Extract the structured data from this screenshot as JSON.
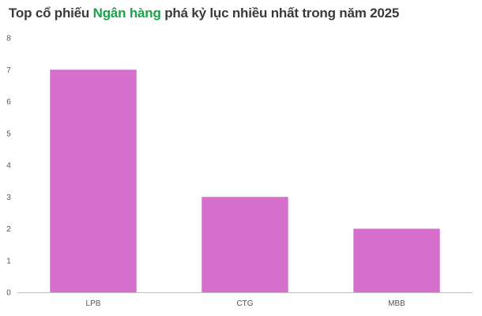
{
  "chart_data": {
    "type": "bar",
    "title": {
      "prefix": "Top cổ phiếu ",
      "highlight": "Ngân hàng",
      "suffix": " phá kỷ lục nhiều nhất trong năm 2025"
    },
    "categories": [
      "LPB",
      "CTG",
      "MBB"
    ],
    "values": [
      7,
      3,
      2
    ],
    "ylim": [
      0,
      8
    ],
    "yticks": [
      "0",
      "1",
      "2",
      "3",
      "4",
      "5",
      "6",
      "7",
      "8"
    ],
    "xlabel": "",
    "ylabel": "",
    "grid": false,
    "legend": "none",
    "colors": {
      "bar": "#d66fcc",
      "title_highlight": "#19a34a",
      "axis": "#bfbfbf"
    }
  }
}
